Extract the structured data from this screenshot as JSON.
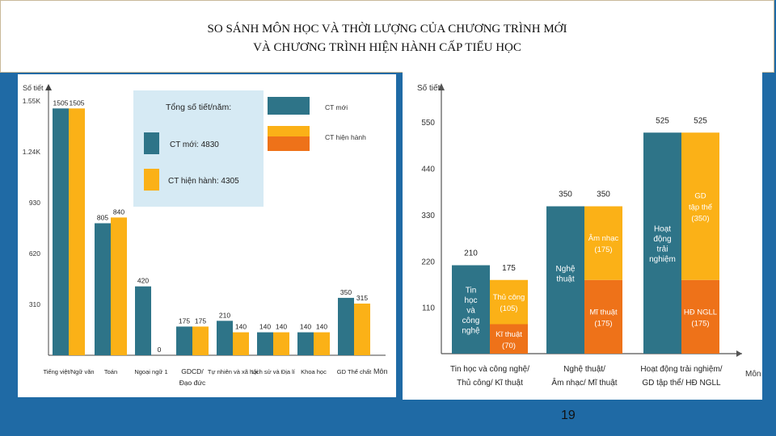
{
  "title": {
    "line1": "SO SÁNH MÔN HỌC VÀ THỜI LƯỢNG CỦA CHƯƠNG TRÌNH MỚI",
    "line2": "VÀ CHƯƠNG TRÌNH HIỆN HÀNH CẤP TIỂU HỌC"
  },
  "page_number": "19",
  "colors": {
    "new": "#2E7488",
    "current": "#FBB117",
    "current_alt": "#EE7219",
    "legend_bg": "#D6EAF4"
  },
  "chart_data": [
    {
      "type": "bar",
      "ylabel": "Số tiết",
      "xlabel": "Môn",
      "ylim": [
        0,
        1600
      ],
      "yticks": [
        310,
        620,
        930,
        1240,
        1550
      ],
      "ytick_labels": [
        "310",
        "620",
        "930",
        "1.24K",
        "1.55K"
      ],
      "categories": [
        "Tiếng việt/Ngữ văn",
        "Toán",
        "Ngoại ngữ 1",
        "GDCD/ Đạo đức",
        "Tự nhiên và xã hội",
        "Lịch sử và Địa lí",
        "Khoa học",
        "GD Thể chất"
      ],
      "series": [
        {
          "name": "CT mới",
          "values": [
            1505,
            805,
            420,
            175,
            210,
            140,
            140,
            350
          ],
          "labels": [
            "1505",
            "805",
            "420",
            "175",
            "210",
            "140",
            "140",
            "350"
          ]
        },
        {
          "name": "CT hiện hành",
          "values": [
            1505,
            840,
            0,
            175,
            140,
            140,
            140,
            315
          ],
          "labels": [
            "1505",
            "840",
            "0",
            "175",
            "140",
            "140",
            "140",
            "315"
          ]
        }
      ],
      "legend": {
        "title": "Tổng số tiết/năm:",
        "new_label": "CT mới: 4830",
        "current_label": "CT hiện hành: 4305",
        "key_new": "CT mới",
        "key_current": "CT hiện hành"
      }
    },
    {
      "type": "bar",
      "stacked": true,
      "ylabel": "Số tiết",
      "xlabel": "Môn",
      "ylim": [
        0,
        560
      ],
      "yticks": [
        110,
        220,
        330,
        440,
        550
      ],
      "groups": [
        {
          "label_line1": "Tin học và công nghệ/",
          "label_line2": "Thủ công/ Kĩ thuật",
          "new": {
            "total": 210,
            "label": "210",
            "segment_text": [
              "Tin",
              "học",
              "và",
              "công",
              "nghệ"
            ]
          },
          "current": {
            "total": 175,
            "label": "175",
            "segments": [
              {
                "name": "Thủ công",
                "value": 105,
                "text": [
                  "Thủ công",
                  "(105)"
                ],
                "color": "current"
              },
              {
                "name": "Kĩ thuật",
                "value": 70,
                "text": [
                  "Kĩ thuật",
                  "(70)"
                ],
                "color": "current_alt"
              }
            ]
          }
        },
        {
          "label_line1": "Nghệ thuật/",
          "label_line2": "Âm nhạc/ Mĩ thuật",
          "new": {
            "total": 350,
            "label": "350",
            "segment_text": [
              "Nghệ",
              "thuật"
            ]
          },
          "current": {
            "total": 350,
            "label": "350",
            "segments": [
              {
                "name": "Âm nhạc",
                "value": 175,
                "text": [
                  "Âm nhạc",
                  "(175)"
                ],
                "color": "current"
              },
              {
                "name": "Mĩ thuật",
                "value": 175,
                "text": [
                  "Mĩ thuật",
                  "(175)"
                ],
                "color": "current_alt"
              }
            ]
          }
        },
        {
          "label_line1": "Hoạt động trải nghiệm/",
          "label_line2": "GD tập thể/ HĐ NGLL",
          "new": {
            "total": 525,
            "label": "525",
            "segment_text": [
              "Hoạt",
              "động",
              "trải",
              "nghiệm"
            ]
          },
          "current": {
            "total": 525,
            "label": "525",
            "segments": [
              {
                "name": "GD tập thể",
                "value": 350,
                "text": [
                  "GD",
                  "tập thể",
                  "(350)"
                ],
                "color": "current"
              },
              {
                "name": "HĐ NGLL",
                "value": 175,
                "text": [
                  "HĐ NGLL",
                  "(175)"
                ],
                "color": "current_alt"
              }
            ]
          }
        }
      ]
    }
  ]
}
